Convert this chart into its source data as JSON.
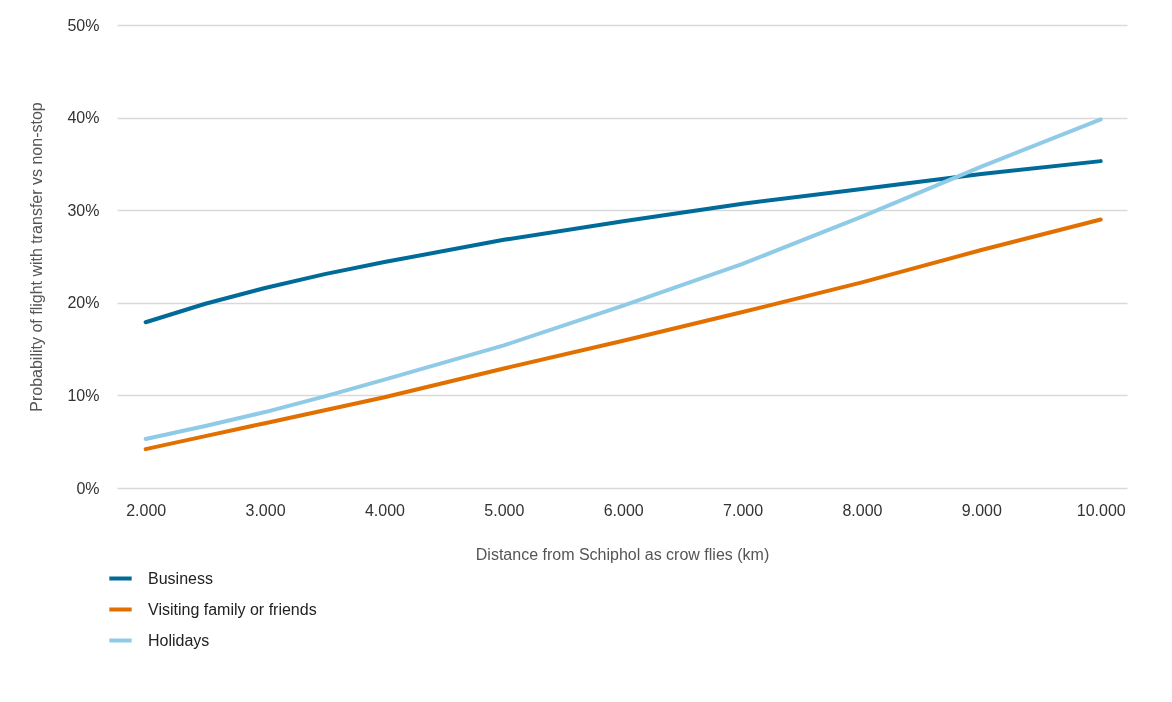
{
  "chart_data": {
    "type": "line",
    "xlabel": "Distance from Schiphol as crow flies (km)",
    "ylabel": "Probability of flight with transfer vs non-stop",
    "x": [
      2000,
      2500,
      3000,
      3500,
      4000,
      5000,
      6000,
      7000,
      8000,
      9000,
      10000
    ],
    "series": [
      {
        "name": "Business",
        "color": "#006b99",
        "values": [
          17.9,
          19.9,
          21.6,
          23.1,
          24.4,
          26.8,
          28.8,
          30.7,
          32.3,
          33.9,
          35.3
        ]
      },
      {
        "name": "Visiting family or friends",
        "color": "#e17000",
        "values": [
          4.2,
          5.6,
          7.0,
          8.4,
          9.8,
          12.9,
          15.9,
          19.0,
          22.2,
          25.7,
          29.0
        ]
      },
      {
        "name": "Holidays",
        "color": "#8fcae7",
        "values": [
          5.3,
          6.7,
          8.2,
          9.9,
          11.7,
          15.4,
          19.7,
          24.2,
          29.3,
          34.7,
          39.8
        ]
      }
    ],
    "xlim": [
      1760,
      10220
    ],
    "ylim": [
      0,
      50
    ],
    "xticks": [
      {
        "value": 2000,
        "label": "2.000"
      },
      {
        "value": 3000,
        "label": "3.000"
      },
      {
        "value": 4000,
        "label": "4.000"
      },
      {
        "value": 5000,
        "label": "5.000"
      },
      {
        "value": 6000,
        "label": "6.000"
      },
      {
        "value": 7000,
        "label": "7.000"
      },
      {
        "value": 8000,
        "label": "8.000"
      },
      {
        "value": 9000,
        "label": "9.000"
      },
      {
        "value": 10000,
        "label": "10.000"
      }
    ],
    "yticks": [
      {
        "value": 0,
        "label": "0%"
      },
      {
        "value": 10,
        "label": "10%"
      },
      {
        "value": 20,
        "label": "20%"
      },
      {
        "value": 30,
        "label": "30%"
      },
      {
        "value": 40,
        "label": "40%"
      },
      {
        "value": 50,
        "label": "50%"
      }
    ],
    "grid": "y",
    "legend": "bottom left",
    "marker": "none",
    "line_style": "solid"
  }
}
